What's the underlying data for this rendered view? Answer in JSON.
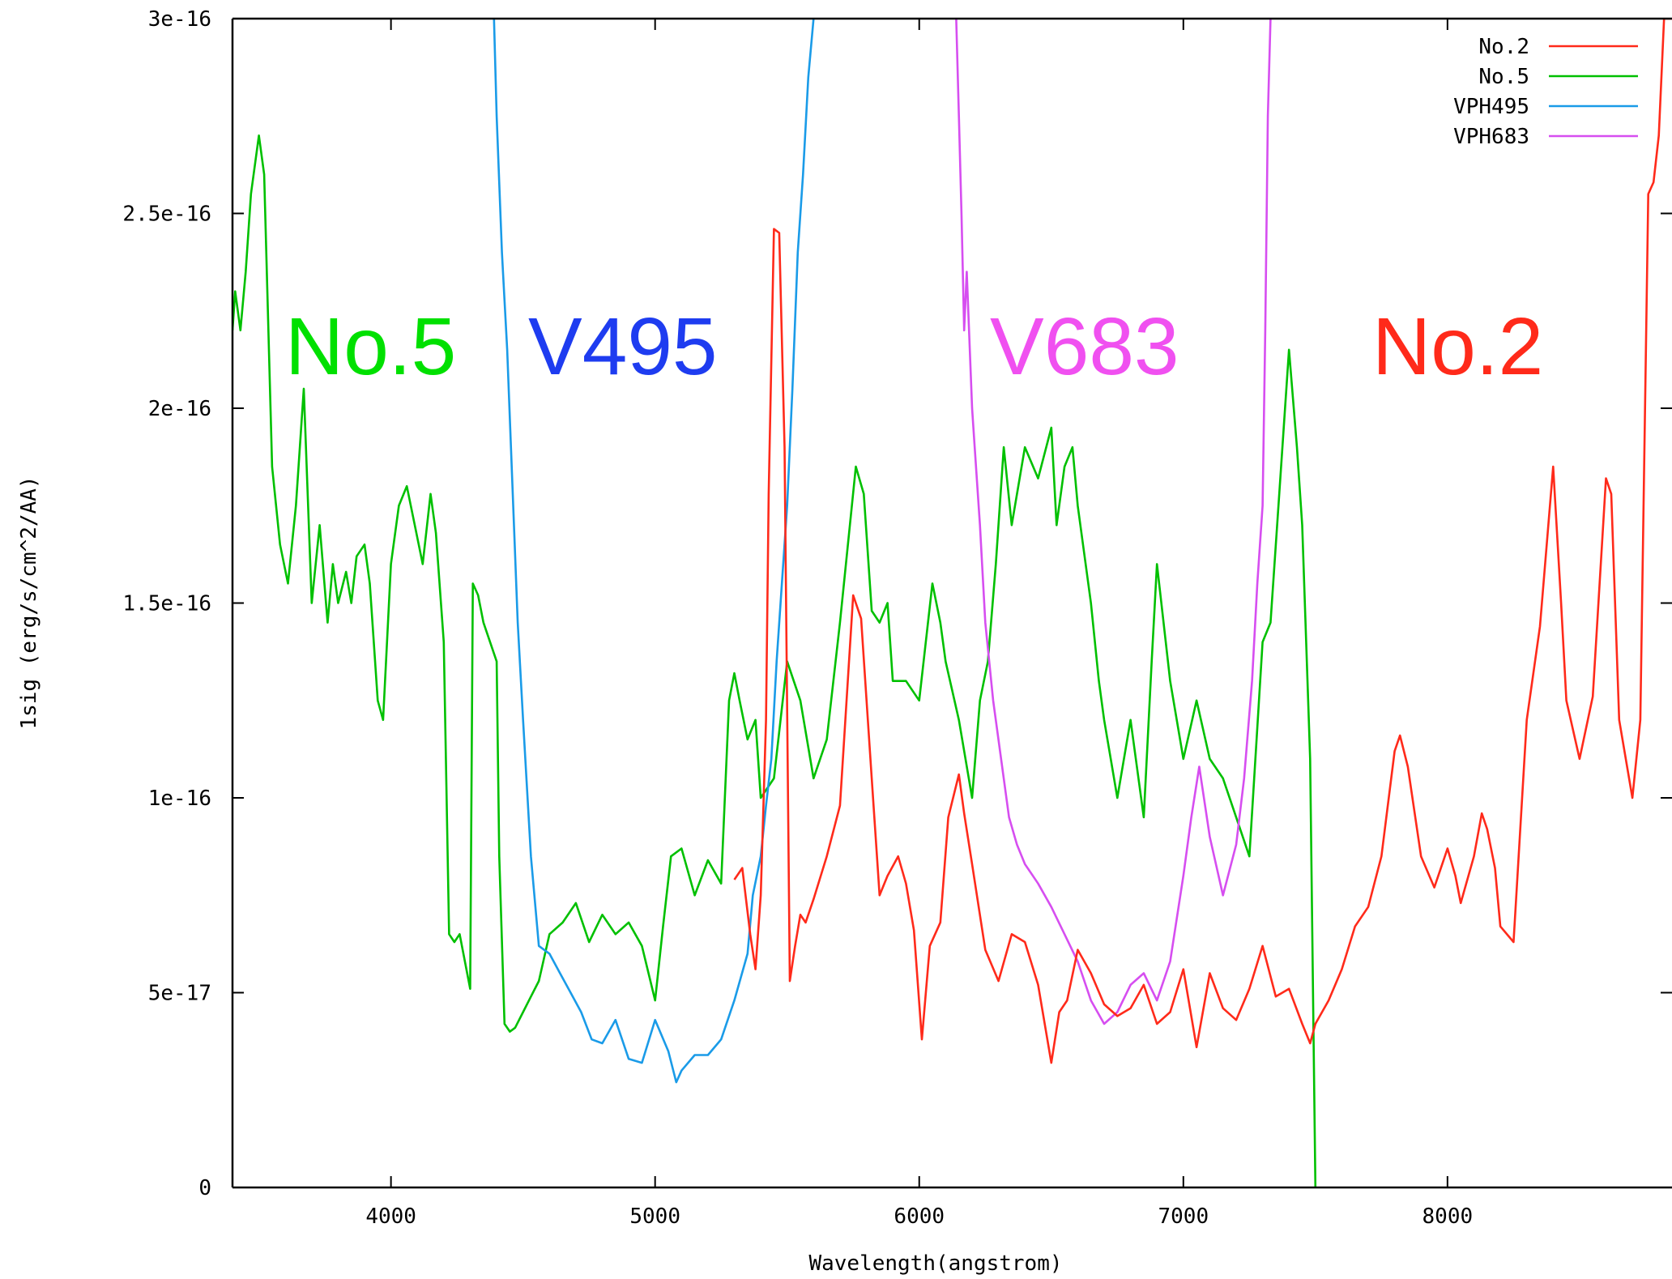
{
  "chart_data": {
    "type": "line",
    "title": "",
    "xlabel": "Wavelength(angstrom)",
    "ylabel": "1sig (erg/s/cm^2/AA)",
    "xlim": [
      3400,
      8850
    ],
    "ylim": [
      0,
      3e-16
    ],
    "xticks": [
      {
        "value": 4000,
        "label": "4000"
      },
      {
        "value": 5000,
        "label": "5000"
      },
      {
        "value": 6000,
        "label": "6000"
      },
      {
        "value": 7000,
        "label": "7000"
      },
      {
        "value": 8000,
        "label": "8000"
      }
    ],
    "yticks": [
      {
        "value": 0,
        "label": "0"
      },
      {
        "value": 5e-17,
        "label": "5e-17"
      },
      {
        "value": 1e-16,
        "label": "1e-16"
      },
      {
        "value": 1.5e-16,
        "label": "1.5e-16"
      },
      {
        "value": 2e-16,
        "label": "2e-16"
      },
      {
        "value": 2.5e-16,
        "label": "2.5e-16"
      },
      {
        "value": 3e-16,
        "label": "3e-16"
      }
    ],
    "grid": false,
    "legend_position": "top-right",
    "series": [
      {
        "name": "No.2",
        "color": "#ff2a1a",
        "x": [
          5300,
          5330,
          5360,
          5380,
          5400,
          5420,
          5430,
          5450,
          5470,
          5490,
          5510,
          5530,
          5550,
          5570,
          5600,
          5650,
          5700,
          5750,
          5780,
          5820,
          5850,
          5880,
          5920,
          5950,
          5980,
          6010,
          6040,
          6080,
          6110,
          6150,
          6170,
          6200,
          6250,
          6300,
          6350,
          6400,
          6450,
          6500,
          6530,
          6560,
          6600,
          6650,
          6700,
          6750,
          6800,
          6850,
          6900,
          6950,
          7000,
          7050,
          7100,
          7150,
          7200,
          7250,
          7300,
          7350,
          7400,
          7450,
          7480,
          7500,
          7550,
          7600,
          7650,
          7700,
          7750,
          7800,
          7820,
          7850,
          7900,
          7950,
          8000,
          8030,
          8050,
          8100,
          8130,
          8150,
          8180,
          8200,
          8250,
          8300,
          8350,
          8400,
          8430,
          8450,
          8500,
          8550,
          8600,
          8620,
          8650,
          8700,
          8730,
          8760,
          8780,
          8800,
          8820,
          8850
        ],
        "y": [
          7.9e-17,
          8.2e-17,
          6.5e-17,
          5.6e-17,
          7.5e-17,
          1.2e-16,
          1.78e-16,
          2.46e-16,
          2.45e-16,
          1.9e-16,
          5.3e-17,
          6.2e-17,
          7e-17,
          6.8e-17,
          7.4e-17,
          8.5e-17,
          9.8e-17,
          1.52e-16,
          1.46e-16,
          1.05e-16,
          7.5e-17,
          8e-17,
          8.5e-17,
          7.8e-17,
          6.6e-17,
          3.8e-17,
          6.2e-17,
          6.8e-17,
          9.5e-17,
          1.06e-16,
          9.6e-17,
          8.3e-17,
          6.1e-17,
          5.3e-17,
          6.5e-17,
          6.3e-17,
          5.2e-17,
          3.2e-17,
          4.5e-17,
          4.8e-17,
          6.1e-17,
          5.5e-17,
          4.7e-17,
          4.4e-17,
          4.6e-17,
          5.2e-17,
          4.2e-17,
          4.5e-17,
          5.6e-17,
          3.6e-17,
          5.5e-17,
          4.6e-17,
          4.3e-17,
          5.1e-17,
          6.2e-17,
          4.9e-17,
          5.1e-17,
          4.2e-17,
          3.7e-17,
          4.2e-17,
          4.8e-17,
          5.6e-17,
          6.7e-17,
          7.2e-17,
          8.5e-17,
          1.12e-16,
          1.16e-16,
          1.08e-16,
          8.5e-17,
          7.7e-17,
          8.7e-17,
          8e-17,
          7.3e-17,
          8.5e-17,
          9.6e-17,
          9.2e-17,
          8.2e-17,
          6.7e-17,
          6.3e-17,
          1.2e-16,
          1.44e-16,
          1.85e-16,
          1.5e-16,
          1.25e-16,
          1.1e-16,
          1.26e-16,
          1.82e-16,
          1.78e-16,
          1.2e-16,
          1e-16,
          1.2e-16,
          2.55e-16,
          2.58e-16,
          2.7e-16,
          3e-16,
          3e-16
        ]
      },
      {
        "name": "No.5",
        "color": "#00c000",
        "x": [
          3400,
          3410,
          3430,
          3450,
          3470,
          3500,
          3520,
          3550,
          3580,
          3610,
          3640,
          3670,
          3700,
          3730,
          3760,
          3780,
          3800,
          3830,
          3850,
          3870,
          3900,
          3920,
          3950,
          3970,
          4000,
          4030,
          4060,
          4090,
          4120,
          4150,
          4170,
          4200,
          4220,
          4240,
          4260,
          4280,
          4300,
          4310,
          4330,
          4350,
          4400,
          4410,
          4430,
          4450,
          4470,
          4500,
          4530,
          4560,
          4600,
          4650,
          4700,
          4750,
          4800,
          4850,
          4900,
          4950,
          5000,
          5030,
          5060,
          5100,
          5150,
          5200,
          5250,
          5280,
          5300,
          5320,
          5350,
          5380,
          5400,
          5450,
          5500,
          5550,
          5600,
          5650,
          5700,
          5730,
          5760,
          5790,
          5820,
          5850,
          5880,
          5900,
          5950,
          6000,
          6050,
          6080,
          6100,
          6150,
          6200,
          6230,
          6260,
          6290,
          6320,
          6350,
          6400,
          6450,
          6500,
          6520,
          6550,
          6580,
          6600,
          6650,
          6680,
          6700,
          6750,
          6800,
          6850,
          6880,
          6900,
          6950,
          7000,
          7050,
          7100,
          7150,
          7200,
          7250,
          7300,
          7330,
          7360,
          7380,
          7400,
          7430,
          7450,
          7480,
          7500
        ],
        "y": [
          2.2e-16,
          2.3e-16,
          2.2e-16,
          2.35e-16,
          2.55e-16,
          2.7e-16,
          2.6e-16,
          1.85e-16,
          1.65e-16,
          1.55e-16,
          1.75e-16,
          2.05e-16,
          1.5e-16,
          1.7e-16,
          1.45e-16,
          1.6e-16,
          1.5e-16,
          1.58e-16,
          1.5e-16,
          1.62e-16,
          1.65e-16,
          1.55e-16,
          1.25e-16,
          1.2e-16,
          1.6e-16,
          1.75e-16,
          1.8e-16,
          1.7e-16,
          1.6e-16,
          1.78e-16,
          1.68e-16,
          1.4e-16,
          6.5e-17,
          6.3e-17,
          6.5e-17,
          5.8e-17,
          5.1e-17,
          1.55e-16,
          1.52e-16,
          1.45e-16,
          1.35e-16,
          8.5e-17,
          4.2e-17,
          4e-17,
          4.1e-17,
          4.5e-17,
          4.9e-17,
          5.3e-17,
          6.5e-17,
          6.8e-17,
          7.3e-17,
          6.3e-17,
          7e-17,
          6.5e-17,
          6.8e-17,
          6.2e-17,
          4.8e-17,
          6.7e-17,
          8.5e-17,
          8.7e-17,
          7.5e-17,
          8.4e-17,
          7.8e-17,
          1.25e-16,
          1.32e-16,
          1.25e-16,
          1.15e-16,
          1.2e-16,
          1e-16,
          1.05e-16,
          1.35e-16,
          1.25e-16,
          1.05e-16,
          1.15e-16,
          1.45e-16,
          1.65e-16,
          1.85e-16,
          1.78e-16,
          1.48e-16,
          1.45e-16,
          1.5e-16,
          1.3e-16,
          1.3e-16,
          1.25e-16,
          1.55e-16,
          1.45e-16,
          1.35e-16,
          1.2e-16,
          1e-16,
          1.25e-16,
          1.35e-16,
          1.6e-16,
          1.9e-16,
          1.7e-16,
          1.9e-16,
          1.82e-16,
          1.95e-16,
          1.7e-16,
          1.85e-16,
          1.9e-16,
          1.75e-16,
          1.5e-16,
          1.3e-16,
          1.2e-16,
          1e-16,
          1.2e-16,
          9.5e-17,
          1.35e-16,
          1.6e-16,
          1.3e-16,
          1.1e-16,
          1.25e-16,
          1.1e-16,
          1.05e-16,
          9.5e-17,
          8.5e-17,
          1.4e-16,
          1.45e-16,
          1.75e-16,
          1.95e-16,
          2.15e-16,
          1.9e-16,
          1.7e-16,
          1.1e-16,
          0
        ]
      },
      {
        "name": "VPH495",
        "color": "#1a9be8",
        "x": [
          4390,
          4400,
          4420,
          4440,
          4460,
          4480,
          4500,
          4530,
          4560,
          4600,
          4640,
          4680,
          4720,
          4760,
          4800,
          4850,
          4900,
          4950,
          5000,
          5050,
          5080,
          5100,
          5150,
          5200,
          5250,
          5300,
          5350,
          5370,
          5400,
          5420,
          5440,
          5460,
          5480,
          5500,
          5520,
          5540,
          5560,
          5580,
          5600
        ],
        "y": [
          3e-16,
          2.75e-16,
          2.4e-16,
          2.15e-16,
          1.8e-16,
          1.45e-16,
          1.2e-16,
          8.5e-17,
          6.2e-17,
          6e-17,
          5.5e-17,
          5e-17,
          4.5e-17,
          3.8e-17,
          3.7e-17,
          4.3e-17,
          3.3e-17,
          3.2e-17,
          4.3e-17,
          3.5e-17,
          2.7e-17,
          3e-17,
          3.4e-17,
          3.4e-17,
          3.8e-17,
          4.8e-17,
          6e-17,
          7.5e-17,
          8.5e-17,
          9.8e-17,
          1.1e-16,
          1.35e-16,
          1.55e-16,
          1.75e-16,
          2.05e-16,
          2.4e-16,
          2.6e-16,
          2.85e-16,
          3e-16
        ]
      },
      {
        "name": "VPH683",
        "color": "#d64ef0",
        "x": [
          6140,
          6150,
          6160,
          6170,
          6180,
          6200,
          6210,
          6230,
          6250,
          6280,
          6310,
          6340,
          6370,
          6400,
          6450,
          6500,
          6550,
          6600,
          6650,
          6700,
          6750,
          6800,
          6850,
          6900,
          6950,
          7000,
          7030,
          7060,
          7100,
          7150,
          7200,
          7230,
          7260,
          7280,
          7300,
          7310,
          7320,
          7330
        ],
        "y": [
          3e-16,
          2.75e-16,
          2.5e-16,
          2.2e-16,
          2.35e-16,
          2e-16,
          1.9e-16,
          1.7e-16,
          1.45e-16,
          1.25e-16,
          1.1e-16,
          9.5e-17,
          8.8e-17,
          8.3e-17,
          7.8e-17,
          7.2e-17,
          6.5e-17,
          5.8e-17,
          4.8e-17,
          4.2e-17,
          4.5e-17,
          5.2e-17,
          5.5e-17,
          4.8e-17,
          5.8e-17,
          8e-17,
          9.5e-17,
          1.08e-16,
          9e-17,
          7.5e-17,
          8.8e-17,
          1.05e-16,
          1.3e-16,
          1.55e-16,
          1.75e-16,
          2.2e-16,
          2.75e-16,
          3e-16
        ]
      }
    ],
    "annotations": [
      {
        "text": "No.5",
        "color": "#00e000"
      },
      {
        "text": "V495",
        "color": "#1e3cf0"
      },
      {
        "text": "V683",
        "color": "#f050f0"
      },
      {
        "text": "No.2",
        "color": "#ff2a1a"
      }
    ]
  }
}
